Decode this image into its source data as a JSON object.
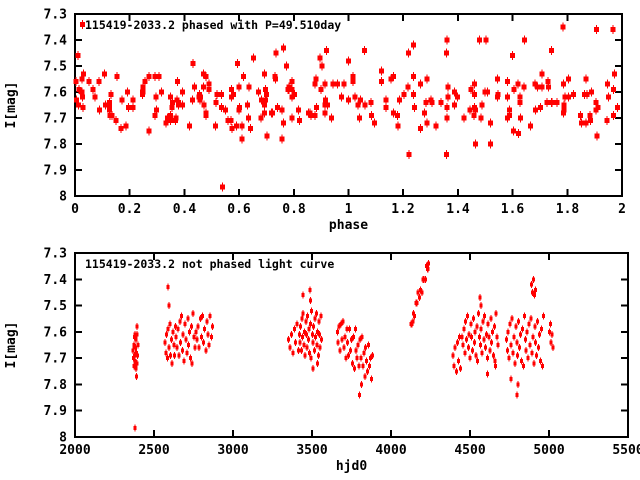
{
  "page": {
    "background": "#ffffff",
    "text_color": "#000000",
    "axis_color": "#000000"
  },
  "chart_data": [
    {
      "type": "scatter",
      "id": "phased",
      "title": "115419-2033.2 phased with P=49.510day",
      "xlabel": "phase",
      "ylabel": "I[mag]",
      "xlim": [
        0,
        2
      ],
      "ylim": [
        8,
        7.3
      ],
      "xtick_values": [
        0,
        0.2,
        0.4,
        0.6,
        0.8,
        1,
        1.2,
        1.4,
        1.6,
        1.8,
        2
      ],
      "xtick_labels": [
        "0",
        "0.2",
        "0.4",
        "0.6",
        "0.8",
        "1",
        "1.2",
        "1.4",
        "1.6",
        "1.8",
        "2"
      ],
      "ytick_values": [
        7.3,
        7.4,
        7.5,
        7.6,
        7.7,
        7.8,
        7.9,
        8
      ],
      "ytick_labels": [
        "7.3",
        "7.4",
        "7.5",
        "7.6",
        "7.7",
        "7.8",
        "7.9",
        "8"
      ],
      "grid": false,
      "legend": "none",
      "marker": "filled-square-with-errorbar",
      "point_color": "#ff0000",
      "period_days": 49.51,
      "points_source": "fold-of-unphased-series"
    },
    {
      "type": "scatter",
      "id": "unphased",
      "title": "115419-2033.2 not phased light curve",
      "xlabel": "hjd0",
      "ylabel": "I[mag]",
      "xlim": [
        2000,
        5500
      ],
      "ylim": [
        8,
        7.3
      ],
      "xtick_values": [
        2000,
        2500,
        3000,
        3500,
        4000,
        4500,
        5000,
        5500
      ],
      "xtick_labels": [
        "2000",
        "2500",
        "3000",
        "3500",
        "4000",
        "4500",
        "5000",
        "5500"
      ],
      "ytick_values": [
        7.3,
        7.4,
        7.5,
        7.6,
        7.7,
        7.8,
        7.9,
        8
      ],
      "ytick_labels": [
        "7.3",
        "7.4",
        "7.5",
        "7.6",
        "7.7",
        "7.8",
        "7.9",
        "8"
      ],
      "grid": false,
      "legend": "none",
      "marker": "small-dot-with-errorbar",
      "point_color": "#ff0000",
      "points": [
        [
          2368,
          7.67
        ],
        [
          2370,
          7.7
        ],
        [
          2372,
          7.65
        ],
        [
          2374,
          7.73
        ],
        [
          2376,
          7.62
        ],
        [
          2377,
          7.69
        ],
        [
          2379,
          7.61
        ],
        [
          2380,
          7.965
        ],
        [
          2381,
          7.71
        ],
        [
          2383,
          7.66
        ],
        [
          2385,
          7.74
        ],
        [
          2387,
          7.63
        ],
        [
          2388,
          7.77
        ],
        [
          2389,
          7.68
        ],
        [
          2391,
          7.72
        ],
        [
          2392,
          7.58
        ],
        [
          2393,
          7.61
        ],
        [
          2396,
          7.69
        ],
        [
          2399,
          7.65
        ],
        [
          2570,
          7.64
        ],
        [
          2575,
          7.68
        ],
        [
          2580,
          7.61
        ],
        [
          2585,
          7.7
        ],
        [
          2589,
          7.43
        ],
        [
          2590,
          7.59
        ],
        [
          2595,
          7.66
        ],
        [
          2596,
          7.5
        ],
        [
          2600,
          7.57
        ],
        [
          2605,
          7.69
        ],
        [
          2610,
          7.63
        ],
        [
          2615,
          7.72
        ],
        [
          2620,
          7.6
        ],
        [
          2625,
          7.65
        ],
        [
          2630,
          7.69
        ],
        [
          2635,
          7.58
        ],
        [
          2640,
          7.62
        ],
        [
          2646,
          7.66
        ],
        [
          2651,
          7.59
        ],
        [
          2657,
          7.69
        ],
        [
          2663,
          7.56
        ],
        [
          2668,
          7.64
        ],
        [
          2674,
          7.54
        ],
        [
          2680,
          7.67
        ],
        [
          2685,
          7.61
        ],
        [
          2691,
          7.71
        ],
        [
          2697,
          7.57
        ],
        [
          2702,
          7.63
        ],
        [
          2708,
          7.68
        ],
        [
          2714,
          7.55
        ],
        [
          2719,
          7.65
        ],
        [
          2725,
          7.6
        ],
        [
          2731,
          7.7
        ],
        [
          2736,
          7.58
        ],
        [
          2742,
          7.72
        ],
        [
          2748,
          7.53
        ],
        [
          2753,
          7.62
        ],
        [
          2759,
          7.66
        ],
        [
          2765,
          7.6
        ],
        [
          2772,
          7.63
        ],
        [
          2779,
          7.58
        ],
        [
          2786,
          7.66
        ],
        [
          2793,
          7.55
        ],
        [
          2800,
          7.62
        ],
        [
          2807,
          7.54
        ],
        [
          2814,
          7.64
        ],
        [
          2821,
          7.59
        ],
        [
          2828,
          7.67
        ],
        [
          2835,
          7.56
        ],
        [
          2842,
          7.61
        ],
        [
          2849,
          7.65
        ],
        [
          2856,
          7.54
        ],
        [
          2863,
          7.62
        ],
        [
          2870,
          7.58
        ],
        [
          3352,
          7.63
        ],
        [
          3361,
          7.66
        ],
        [
          3370,
          7.61
        ],
        [
          3379,
          7.68
        ],
        [
          3388,
          7.59
        ],
        [
          3397,
          7.64
        ],
        [
          3406,
          7.57
        ],
        [
          3415,
          7.67
        ],
        [
          3420,
          7.61
        ],
        [
          3424,
          7.64
        ],
        [
          3428,
          7.58
        ],
        [
          3432,
          7.67
        ],
        [
          3436,
          7.55
        ],
        [
          3440,
          7.62
        ],
        [
          3443,
          7.46
        ],
        [
          3444,
          7.53
        ],
        [
          3448,
          7.65
        ],
        [
          3452,
          7.6
        ],
        [
          3457,
          7.69
        ],
        [
          3461,
          7.56
        ],
        [
          3465,
          7.61
        ],
        [
          3469,
          7.66
        ],
        [
          3473,
          7.54
        ],
        [
          3477,
          7.63
        ],
        [
          3481,
          7.59
        ],
        [
          3485,
          7.68
        ],
        [
          3488,
          7.44
        ],
        [
          3490,
          7.57
        ],
        [
          3492,
          7.48
        ],
        [
          3494,
          7.7
        ],
        [
          3498,
          7.52
        ],
        [
          3502,
          7.61
        ],
        [
          3505,
          7.74
        ],
        [
          3506,
          7.64
        ],
        [
          3510,
          7.58
        ],
        [
          3515,
          7.67
        ],
        [
          3519,
          7.55
        ],
        [
          3523,
          7.62
        ],
        [
          3527,
          7.53
        ],
        [
          3531,
          7.65
        ],
        [
          3535,
          7.72
        ],
        [
          3536,
          7.6
        ],
        [
          3540,
          7.69
        ],
        [
          3544,
          7.56
        ],
        [
          3548,
          7.61
        ],
        [
          3552,
          7.66
        ],
        [
          3556,
          7.54
        ],
        [
          3560,
          7.63
        ],
        [
          3660,
          7.6
        ],
        [
          3666,
          7.64
        ],
        [
          3672,
          7.58
        ],
        [
          3678,
          7.67
        ],
        [
          3684,
          7.57
        ],
        [
          3690,
          7.63
        ],
        [
          3696,
          7.56
        ],
        [
          3702,
          7.66
        ],
        [
          3708,
          7.62
        ],
        [
          3714,
          7.7
        ],
        [
          3720,
          7.59
        ],
        [
          3726,
          7.64
        ],
        [
          3732,
          7.69
        ],
        [
          3738,
          7.59
        ],
        [
          3744,
          7.67
        ],
        [
          3750,
          7.63
        ],
        [
          3756,
          7.72
        ],
        [
          3762,
          7.62
        ],
        [
          3768,
          7.74
        ],
        [
          3774,
          7.59
        ],
        [
          3780,
          7.67
        ],
        [
          3786,
          7.7
        ],
        [
          3792,
          7.65
        ],
        [
          3798,
          7.73
        ],
        [
          3800,
          7.84
        ],
        [
          3804,
          7.63
        ],
        [
          3810,
          7.7
        ],
        [
          3812,
          7.8
        ],
        [
          3816,
          7.62
        ],
        [
          3822,
          7.73
        ],
        [
          3828,
          7.68
        ],
        [
          3834,
          7.77
        ],
        [
          3840,
          7.66
        ],
        [
          3846,
          7.71
        ],
        [
          3852,
          7.75
        ],
        [
          3858,
          7.65
        ],
        [
          3864,
          7.73
        ],
        [
          3870,
          7.7
        ],
        [
          3876,
          7.78
        ],
        [
          3882,
          7.69
        ],
        [
          4125,
          7.57
        ],
        [
          4133,
          7.57
        ],
        [
          4140,
          7.56
        ],
        [
          4141,
          7.53
        ],
        [
          4149,
          7.54
        ],
        [
          4157,
          7.49
        ],
        [
          4165,
          7.49
        ],
        [
          4172,
          7.45
        ],
        [
          4180,
          7.47
        ],
        [
          4188,
          7.44
        ],
        [
          4196,
          7.45
        ],
        [
          4203,
          7.4
        ],
        [
          4210,
          7.4
        ],
        [
          4217,
          7.4
        ],
        [
          4224,
          7.35
        ],
        [
          4230,
          7.36
        ],
        [
          4233,
          7.36
        ],
        [
          4236,
          7.34
        ],
        [
          4392,
          7.69
        ],
        [
          4399,
          7.73
        ],
        [
          4406,
          7.66
        ],
        [
          4413,
          7.75
        ],
        [
          4420,
          7.64
        ],
        [
          4427,
          7.71
        ],
        [
          4434,
          7.62
        ],
        [
          4441,
          7.74
        ],
        [
          4450,
          7.62
        ],
        [
          4456,
          7.65
        ],
        [
          4461,
          7.59
        ],
        [
          4467,
          7.68
        ],
        [
          4472,
          7.56
        ],
        [
          4478,
          7.63
        ],
        [
          4483,
          7.54
        ],
        [
          4489,
          7.66
        ],
        [
          4494,
          7.61
        ],
        [
          4500,
          7.7
        ],
        [
          4505,
          7.57
        ],
        [
          4511,
          7.62
        ],
        [
          4516,
          7.67
        ],
        [
          4522,
          7.55
        ],
        [
          4527,
          7.64
        ],
        [
          4533,
          7.6
        ],
        [
          4538,
          7.69
        ],
        [
          4544,
          7.58
        ],
        [
          4549,
          7.71
        ],
        [
          4555,
          7.53
        ],
        [
          4560,
          7.62
        ],
        [
          4564,
          7.47
        ],
        [
          4566,
          7.65
        ],
        [
          4570,
          7.5
        ],
        [
          4571,
          7.59
        ],
        [
          4577,
          7.68
        ],
        [
          4582,
          7.56
        ],
        [
          4588,
          7.63
        ],
        [
          4593,
          7.54
        ],
        [
          4599,
          7.66
        ],
        [
          4604,
          7.61
        ],
        [
          4610,
          7.7
        ],
        [
          4612,
          7.76
        ],
        [
          4615,
          7.57
        ],
        [
          4621,
          7.62
        ],
        [
          4626,
          7.67
        ],
        [
          4632,
          7.55
        ],
        [
          4637,
          7.64
        ],
        [
          4643,
          7.6
        ],
        [
          4648,
          7.69
        ],
        [
          4654,
          7.58
        ],
        [
          4659,
          7.71
        ],
        [
          4660,
          7.73
        ],
        [
          4665,
          7.53
        ],
        [
          4670,
          7.62
        ],
        [
          4676,
          7.65
        ],
        [
          4730,
          7.63
        ],
        [
          4736,
          7.67
        ],
        [
          4742,
          7.6
        ],
        [
          4748,
          7.7
        ],
        [
          4754,
          7.57
        ],
        [
          4760,
          7.78
        ],
        [
          4761,
          7.65
        ],
        [
          4766,
          7.55
        ],
        [
          4772,
          7.68
        ],
        [
          4778,
          7.62
        ],
        [
          4784,
          7.72
        ],
        [
          4790,
          7.58
        ],
        [
          4796,
          7.64
        ],
        [
          4797,
          7.84
        ],
        [
          4802,
          7.69
        ],
        [
          4805,
          7.8
        ],
        [
          4808,
          7.56
        ],
        [
          4814,
          7.66
        ],
        [
          4820,
          7.61
        ],
        [
          4826,
          7.71
        ],
        [
          4832,
          7.59
        ],
        [
          4838,
          7.73
        ],
        [
          4844,
          7.54
        ],
        [
          4850,
          7.63
        ],
        [
          4856,
          7.67
        ],
        [
          4862,
          7.6
        ],
        [
          4868,
          7.7
        ],
        [
          4874,
          7.57
        ],
        [
          4880,
          7.65
        ],
        [
          4886,
          7.55
        ],
        [
          4890,
          7.42
        ],
        [
          4892,
          7.68
        ],
        [
          4896,
          7.45
        ],
        [
          4898,
          7.62
        ],
        [
          4902,
          7.4
        ],
        [
          4904,
          7.72
        ],
        [
          4908,
          7.46
        ],
        [
          4910,
          7.58
        ],
        [
          4915,
          7.44
        ],
        [
          4916,
          7.64
        ],
        [
          4922,
          7.69
        ],
        [
          4928,
          7.56
        ],
        [
          4934,
          7.66
        ],
        [
          4940,
          7.61
        ],
        [
          4946,
          7.71
        ],
        [
          4952,
          7.59
        ],
        [
          4958,
          7.73
        ],
        [
          4964,
          7.54
        ],
        [
          5002,
          7.6
        ],
        [
          5008,
          7.57
        ],
        [
          5014,
          7.64
        ],
        [
          5020,
          7.61
        ],
        [
          5026,
          7.66
        ]
      ]
    }
  ]
}
